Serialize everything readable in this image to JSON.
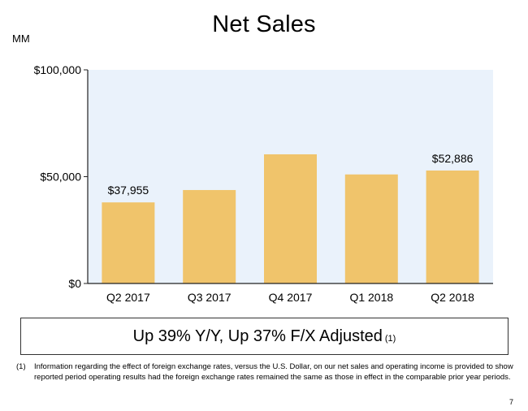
{
  "page": {
    "title": "Net Sales",
    "unit_label": "MM",
    "summary": "Up 39% Y/Y, Up 37% F/X Adjusted",
    "summary_footnote_ref": "(1)",
    "footnote_marker": "(1)",
    "footnote_text": "Information regarding the effect of foreign exchange rates, versus the U.S. Dollar, on our net sales and operating income is provided to show reported period operating results had the foreign exchange rates remained the same as those in effect in the comparable prior year periods.",
    "page_number": "7"
  },
  "colors": {
    "bar": "#f0c46b",
    "plot_background": "#eaf2fb",
    "axis": "#222222"
  },
  "chart_data": {
    "type": "bar",
    "title": "Net Sales",
    "ylabel": "MM",
    "xlabel": "",
    "categories": [
      "Q2 2017",
      "Q3 2017",
      "Q4 2017",
      "Q1 2018",
      "Q2 2018"
    ],
    "values": [
      37955,
      43744,
      60453,
      51042,
      52886
    ],
    "data_labels": [
      "$37,955",
      null,
      null,
      null,
      "$52,886"
    ],
    "ylim": [
      0,
      100000
    ],
    "yticks": [
      0,
      50000,
      100000
    ],
    "ytick_labels": [
      "$0",
      "$50,000",
      "$100,000"
    ],
    "grid": false,
    "legend": "none"
  }
}
